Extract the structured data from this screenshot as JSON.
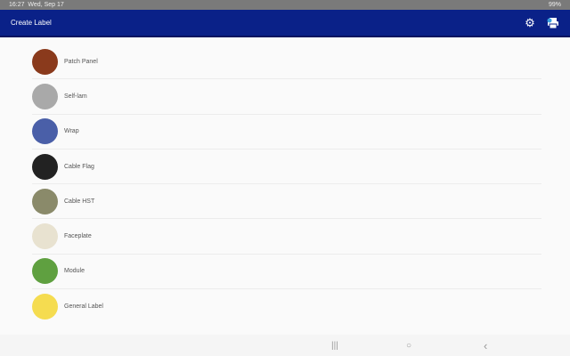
{
  "status": {
    "time": "16:27",
    "date": "Wed, Sep 17",
    "battery": "99%"
  },
  "appbar": {
    "title": "Create Label",
    "settings_icon": "gear-icon",
    "printer_icon": "printer-icon"
  },
  "items": [
    {
      "label": "Patch Panel",
      "color": "#8a3a1c"
    },
    {
      "label": "Self-lam",
      "color": "#a9a9a9"
    },
    {
      "label": "Wrap",
      "color": "#4a5fa8"
    },
    {
      "label": "Cable Flag",
      "color": "#222222"
    },
    {
      "label": "Cable HST",
      "color": "#8a8a6a"
    },
    {
      "label": "Faceplate",
      "color": "#e8e2d0"
    },
    {
      "label": "Module",
      "color": "#5fa040"
    },
    {
      "label": "General Label",
      "color": "#f5dc50"
    }
  ],
  "nav": {
    "recents": "|||",
    "home": "○",
    "back": "‹"
  }
}
